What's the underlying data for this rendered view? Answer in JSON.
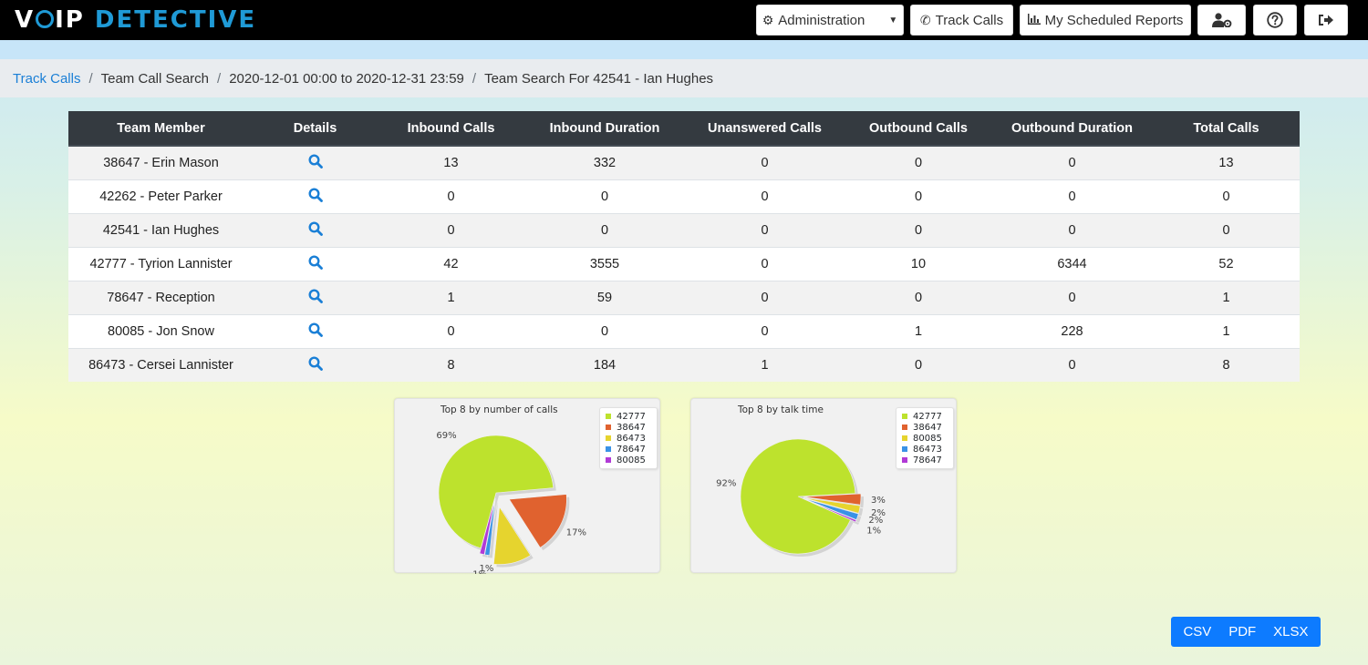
{
  "header": {
    "logo_part1": "V",
    "logo_part2": "IP",
    "logo_part3": "DETECTIVE",
    "nav": {
      "administration": "Administration",
      "track_calls": "Track Calls",
      "scheduled_reports": "My Scheduled Reports"
    }
  },
  "breadcrumb": {
    "items": [
      "Track Calls",
      "Team Call Search",
      "2020-12-01 00:00 to 2020-12-31 23:59",
      "Team Search For 42541 - Ian Hughes"
    ]
  },
  "table": {
    "headers": [
      "Team Member",
      "Details",
      "Inbound Calls",
      "Inbound Duration",
      "Unanswered Calls",
      "Outbound Calls",
      "Outbound Duration",
      "Total Calls"
    ],
    "rows": [
      [
        "38647 - Erin Mason",
        "13",
        "332",
        "0",
        "0",
        "0",
        "13"
      ],
      [
        "42262 - Peter Parker",
        "0",
        "0",
        "0",
        "0",
        "0",
        "0"
      ],
      [
        "42541 - Ian Hughes",
        "0",
        "0",
        "0",
        "0",
        "0",
        "0"
      ],
      [
        "42777 - Tyrion Lannister",
        "42",
        "3555",
        "0",
        "10",
        "6344",
        "52"
      ],
      [
        "78647 - Reception",
        "1",
        "59",
        "0",
        "0",
        "0",
        "1"
      ],
      [
        "80085 - Jon Snow",
        "0",
        "0",
        "0",
        "1",
        "228",
        "1"
      ],
      [
        "86473 - Cersei Lannister",
        "8",
        "184",
        "1",
        "0",
        "0",
        "8"
      ]
    ]
  },
  "chart_data": [
    {
      "type": "pie",
      "title": "Top 8 by number of calls",
      "categories": [
        "42777",
        "38647",
        "86473",
        "78647",
        "80085"
      ],
      "values": [
        52,
        13,
        8,
        1,
        1
      ],
      "labels": [
        "69%",
        "17%",
        "11%",
        "1%",
        "1%"
      ],
      "colors": [
        "#bde22d",
        "#e0622f",
        "#e6d42e",
        "#3a92e6",
        "#b13ad6"
      ],
      "legend": "top-right"
    },
    {
      "type": "pie",
      "title": "Top 8 by talk time",
      "categories": [
        "42777",
        "38647",
        "80085",
        "86473",
        "78647"
      ],
      "values": [
        9899,
        332,
        228,
        184,
        59
      ],
      "labels": [
        "92%",
        "3%",
        "2%",
        "2%",
        "1%"
      ],
      "colors": [
        "#bde22d",
        "#e0622f",
        "#e6d42e",
        "#3a92e6",
        "#b13ad6"
      ],
      "legend": "top-right"
    }
  ],
  "export": {
    "csv": "CSV",
    "pdf": "PDF",
    "xlsx": "XLSX"
  }
}
